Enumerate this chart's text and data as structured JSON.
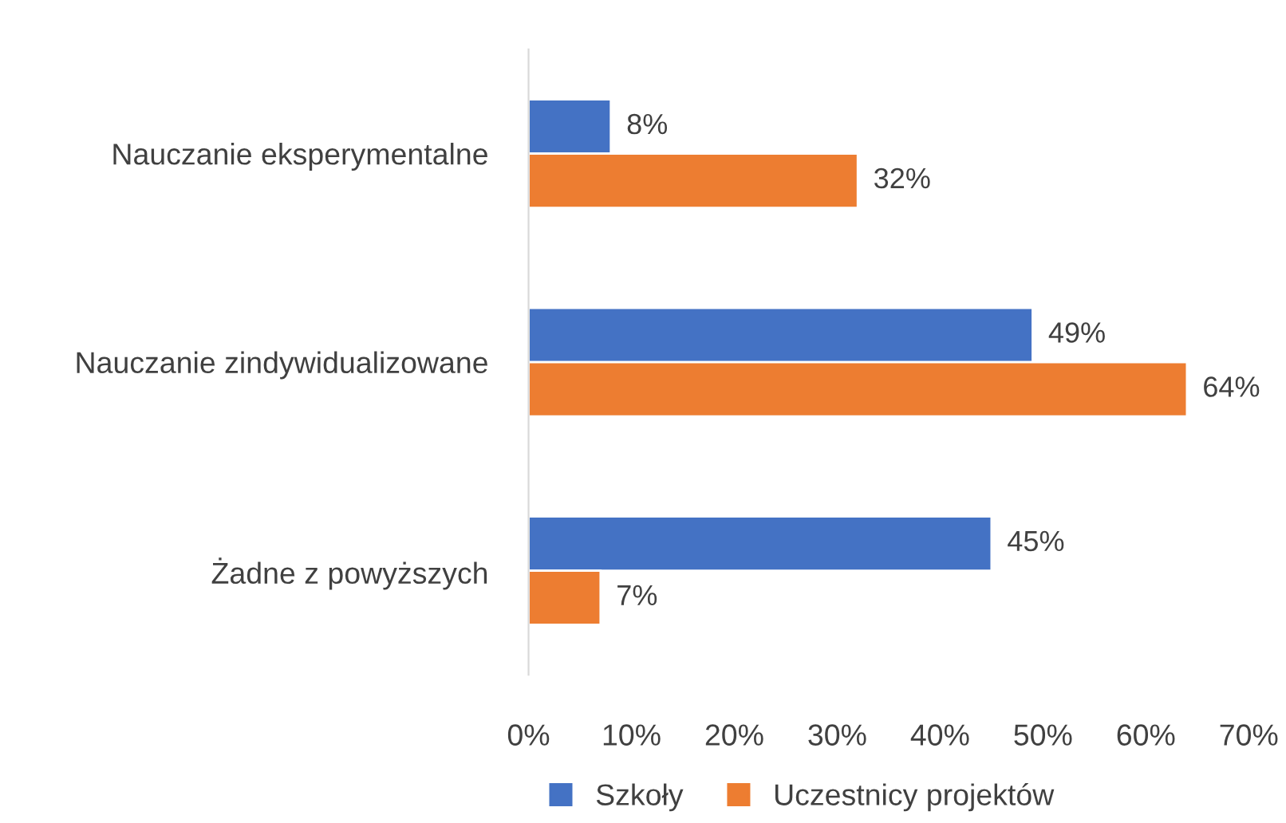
{
  "chart_data": {
    "type": "bar",
    "orientation": "horizontal",
    "categories": [
      "Nauczanie eksperymentalne",
      "Nauczanie zindywidualizowane",
      "Żadne z powyższych"
    ],
    "series": [
      {
        "name": "Szkoły",
        "color": "#4472c4",
        "values": [
          8,
          49,
          45
        ],
        "value_labels": [
          "8%",
          "49%",
          "45%"
        ]
      },
      {
        "name": "Uczestnicy projektów",
        "color": "#ed7d31",
        "values": [
          32,
          64,
          7
        ],
        "value_labels": [
          "32%",
          "64%",
          "7%"
        ]
      }
    ],
    "xlim": [
      0,
      70
    ],
    "xticks": [
      {
        "value": 0,
        "label": "0%"
      },
      {
        "value": 10,
        "label": "10%"
      },
      {
        "value": 20,
        "label": "20%"
      },
      {
        "value": 30,
        "label": "30%"
      },
      {
        "value": 40,
        "label": "40%"
      },
      {
        "value": 50,
        "label": "50%"
      },
      {
        "value": 60,
        "label": "60%"
      },
      {
        "value": 70,
        "label": "70%"
      }
    ],
    "grid": false,
    "legend": "bottom"
  }
}
